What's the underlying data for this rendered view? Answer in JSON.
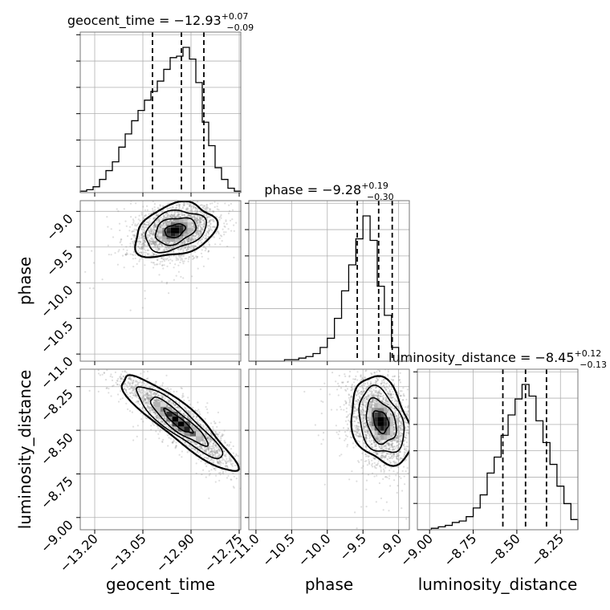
{
  "chart_data": {
    "type": "corner",
    "grid": true,
    "parameters": [
      "geocent_time",
      "phase",
      "luminosity_distance"
    ],
    "titles": [
      {
        "name": "geocent_time",
        "text": "geocent_time = −12.93",
        "plus": "+0.07",
        "minus": "−0.09"
      },
      {
        "name": "phase",
        "text": "phase = −9.28",
        "plus": "+0.19",
        "minus": "−0.30"
      },
      {
        "name": "luminosity_distance",
        "text": "luminosity_distance = −8.45",
        "plus": "+0.12",
        "minus": "−0.13"
      }
    ],
    "axis_labels": {
      "x": [
        "geocent_time",
        "phase",
        "luminosity_distance"
      ],
      "y": [
        "phase",
        "luminosity_distance"
      ]
    },
    "ranges": {
      "geocent_time": [
        -13.245,
        -12.745
      ],
      "phase": [
        -11.1,
        -8.85
      ],
      "luminosity_distance": [
        -9.07,
        -8.15
      ]
    },
    "ticks": {
      "geocent_time": [
        -13.2,
        -13.05,
        -12.9,
        -12.75
      ],
      "phase": [
        -11.0,
        -10.5,
        -10.0,
        -9.5,
        -9.0
      ],
      "luminosity_distance": [
        -9.0,
        -8.75,
        -8.5,
        -8.25
      ]
    },
    "tick_labels": {
      "geocent_time": [
        "−13.20",
        "−13.05",
        "−12.90",
        "−12.75"
      ],
      "phase": [
        "−11.0",
        "−10.5",
        "−10.0",
        "−9.5",
        "−9.0"
      ],
      "luminosity_distance": [
        "−9.00",
        "−8.75",
        "−8.50",
        "−8.25"
      ]
    },
    "histograms": [
      {
        "parameter": "geocent_time",
        "bins": [
          -13.245,
          -13.225,
          -13.205,
          -13.185,
          -13.165,
          -13.145,
          -13.125,
          -13.105,
          -13.085,
          -13.065,
          -13.045,
          -13.025,
          -13.005,
          -12.985,
          -12.965,
          -12.945,
          -12.925,
          -12.905,
          -12.885,
          -12.865,
          -12.845,
          -12.825,
          -12.805,
          -12.785,
          -12.765,
          -12.745
        ],
        "counts": [
          1,
          2,
          4,
          9,
          15,
          21,
          31,
          40,
          49,
          56,
          63,
          69,
          76,
          84,
          92,
          93,
          99,
          91,
          75,
          48,
          32,
          17,
          9,
          3,
          1
        ],
        "quantiles": [
          -13.02,
          -12.93,
          -12.86
        ]
      },
      {
        "parameter": "phase",
        "bins": [
          -11.1,
          -11.0,
          -10.9,
          -10.8,
          -10.7,
          -10.6,
          -10.5,
          -10.4,
          -10.3,
          -10.2,
          -10.1,
          -10.0,
          -9.9,
          -9.8,
          -9.7,
          -9.6,
          -9.5,
          -9.4,
          -9.3,
          -9.2,
          -9.1,
          -9.0,
          -8.9
        ],
        "counts": [
          0,
          0,
          0,
          0,
          0,
          1,
          1,
          2,
          3,
          5,
          9,
          15,
          28,
          46,
          63,
          80,
          95,
          79,
          49,
          30,
          9,
          0
        ],
        "quantiles": [
          -9.58,
          -9.28,
          -9.09
        ]
      },
      {
        "parameter": "luminosity_distance",
        "bins": [
          -9.07,
          -9.03,
          -8.99,
          -8.95,
          -8.91,
          -8.87,
          -8.83,
          -8.79,
          -8.75,
          -8.71,
          -8.67,
          -8.63,
          -8.59,
          -8.55,
          -8.51,
          -8.47,
          -8.43,
          -8.39,
          -8.35,
          -8.31,
          -8.27,
          -8.23,
          -8.19,
          -8.15
        ],
        "counts": [
          0,
          0,
          1,
          2,
          3,
          5,
          6,
          9,
          15,
          24,
          39,
          50,
          65,
          79,
          90,
          100,
          92,
          75,
          60,
          45,
          30,
          18,
          7
        ],
        "quantiles": [
          -8.58,
          -8.45,
          -8.33
        ]
      }
    ],
    "panels_2d": [
      {
        "x": "geocent_time",
        "y": "phase",
        "center": [
          -12.95,
          -9.27
        ],
        "spread": [
          0.06,
          0.18
        ],
        "correlation": 0.3,
        "contour_levels": [
          0.5,
          1.0,
          1.5,
          2.0
        ]
      },
      {
        "x": "geocent_time",
        "y": "luminosity_distance",
        "center": [
          -12.94,
          -8.45
        ],
        "spread": [
          0.085,
          0.13
        ],
        "correlation": -0.9,
        "contour_levels": [
          0.5,
          1.0,
          1.5,
          2.0
        ]
      },
      {
        "x": "phase",
        "y": "luminosity_distance",
        "center": [
          -9.25,
          -8.45
        ],
        "spread": [
          0.2,
          0.12
        ],
        "correlation": -0.3,
        "contour_levels": [
          0.5,
          1.0,
          1.5,
          2.0
        ]
      }
    ],
    "colors": {
      "line": "#000000",
      "points": "#888888",
      "grid": "#b0b0b0",
      "frame": "#777777"
    }
  }
}
